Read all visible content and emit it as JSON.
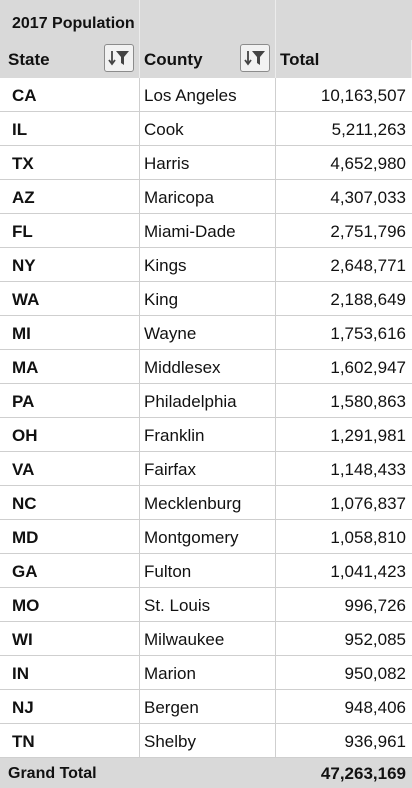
{
  "pivot": {
    "title": "2017 Population",
    "headers": {
      "state": "State",
      "county": "County",
      "total": "Total"
    },
    "rows": [
      {
        "state": "CA",
        "county": "Los Angeles",
        "total": "10,163,507"
      },
      {
        "state": "IL",
        "county": "Cook",
        "total": "5,211,263"
      },
      {
        "state": "TX",
        "county": "Harris",
        "total": "4,652,980"
      },
      {
        "state": "AZ",
        "county": "Maricopa",
        "total": "4,307,033"
      },
      {
        "state": "FL",
        "county": "Miami-Dade",
        "total": "2,751,796"
      },
      {
        "state": "NY",
        "county": "Kings",
        "total": "2,648,771"
      },
      {
        "state": "WA",
        "county": "King",
        "total": "2,188,649"
      },
      {
        "state": "MI",
        "county": "Wayne",
        "total": "1,753,616"
      },
      {
        "state": "MA",
        "county": "Middlesex",
        "total": "1,602,947"
      },
      {
        "state": "PA",
        "county": "Philadelphia",
        "total": "1,580,863"
      },
      {
        "state": "OH",
        "county": "Franklin",
        "total": "1,291,981"
      },
      {
        "state": "VA",
        "county": "Fairfax",
        "total": "1,148,433"
      },
      {
        "state": "NC",
        "county": "Mecklenburg",
        "total": "1,076,837"
      },
      {
        "state": "MD",
        "county": "Montgomery",
        "total": "1,058,810"
      },
      {
        "state": "GA",
        "county": "Fulton",
        "total": "1,041,423"
      },
      {
        "state": "MO",
        "county": "St. Louis",
        "total": "996,726"
      },
      {
        "state": "WI",
        "county": "Milwaukee",
        "total": "952,085"
      },
      {
        "state": "IN",
        "county": "Marion",
        "total": "950,082"
      },
      {
        "state": "NJ",
        "county": "Bergen",
        "total": "948,406"
      },
      {
        "state": "TN",
        "county": "Shelby",
        "total": "936,961"
      }
    ],
    "grand_total": {
      "label": "Grand Total",
      "value": "47,263,169"
    },
    "icons": {
      "state_filter": "sort-filter-icon",
      "county_filter": "sort-filter-icon"
    },
    "colors": {
      "header_fill": "#d9d9d9",
      "gridline": "#cfcfcf",
      "text": "#111111"
    }
  }
}
